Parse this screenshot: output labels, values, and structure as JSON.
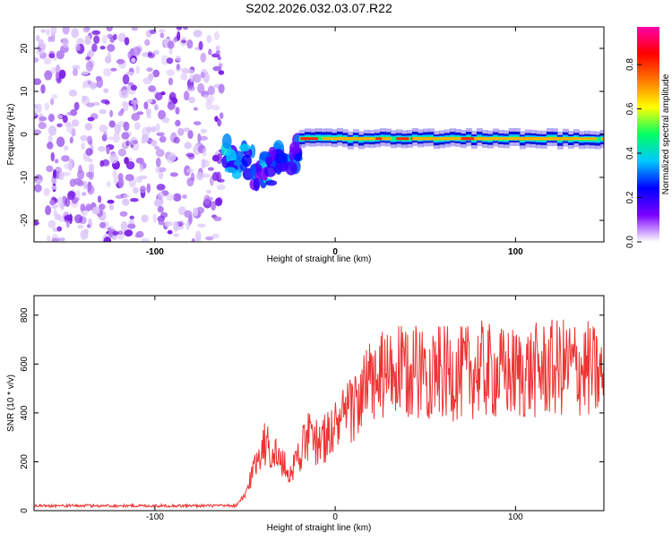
{
  "title": "S202.2026.032.03.07.R22",
  "chart_data": [
    {
      "type": "heatmap",
      "name": "spectrogram",
      "xlabel": "Height of straight line (km)",
      "ylabel": "Frequency (Hz)",
      "xlim": [
        -167,
        149
      ],
      "ylim": [
        -25,
        25
      ],
      "x_ticks": [
        -100,
        0,
        100
      ],
      "x_tick_labels": [
        "-100",
        "0",
        "100"
      ],
      "y_ticks": [
        -20,
        -10,
        0,
        10,
        20
      ],
      "y_tick_labels": [
        "-20",
        "-10",
        "0",
        "10",
        "20"
      ],
      "colorbar": {
        "label": "Normalized spectral amplitude",
        "range": [
          0,
          0.97
        ],
        "ticks": [
          0.0,
          0.2,
          0.4,
          0.6,
          0.8
        ],
        "tick_labels": [
          "0.0",
          "0.2",
          "0.4",
          "0.6",
          "0.8"
        ],
        "colormap": [
          "#ffffff",
          "#7a00ff",
          "#0000ff",
          "#00c8ff",
          "#00ff64",
          "#ffff00",
          "#ff7a00",
          "#ff0000",
          "#ff00aa"
        ]
      },
      "regions": [
        {
          "name": "noise",
          "x_range": [
            -167,
            -63
          ],
          "freq_range": [
            -25,
            25
          ],
          "amplitude": 0.04
        },
        {
          "name": "fragmented-signal",
          "x_range": [
            -63,
            -20
          ],
          "freq_center_at_ends": [
            -3,
            -8
          ],
          "amplitude": 0.2
        },
        {
          "name": "strong-line",
          "x_range": [
            -20,
            149
          ],
          "freq_center": -1,
          "amplitude": 0.9
        }
      ]
    },
    {
      "type": "line",
      "name": "snr",
      "xlabel": "Height of straight line (km)",
      "ylabel": "SNR (10 * v/v)",
      "xlim": [
        -167,
        149
      ],
      "ylim": [
        0,
        880
      ],
      "x_ticks": [
        -100,
        0,
        100
      ],
      "x_tick_labels": [
        "-100",
        "0",
        "100"
      ],
      "y_ticks": [
        0,
        200,
        400,
        600,
        800
      ],
      "y_tick_labels": [
        "0",
        "200",
        "400",
        "600",
        "800"
      ],
      "line_color": "#ee3333",
      "x": [
        -167,
        -150,
        -130,
        -110,
        -90,
        -70,
        -55,
        -50,
        -45,
        -40,
        -35,
        -30,
        -25,
        -20,
        -15,
        -10,
        -5,
        0,
        5,
        10,
        15,
        20,
        30,
        40,
        50,
        60,
        70,
        80,
        90,
        100,
        110,
        120,
        130,
        140,
        149
      ],
      "y": [
        20,
        20,
        20,
        20,
        20,
        20,
        20,
        60,
        180,
        280,
        250,
        200,
        150,
        240,
        300,
        280,
        300,
        340,
        380,
        420,
        480,
        520,
        560,
        560,
        580,
        560,
        560,
        580,
        560,
        560,
        570,
        580,
        590,
        580,
        540
      ]
    }
  ]
}
